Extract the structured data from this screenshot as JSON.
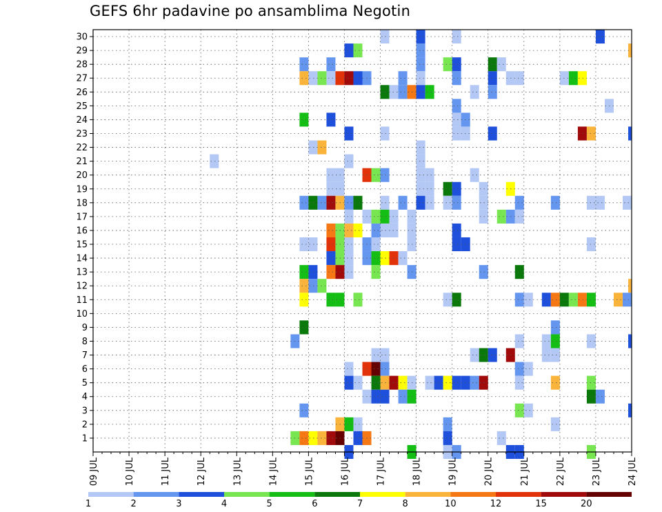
{
  "chart_data": {
    "type": "heatmap",
    "title": "GEFS 6hr padavine po ansamblima Negotin",
    "x_tick_labels": [
      "09 JUL",
      "10 JUL",
      "11 JUL",
      "12 JUL",
      "13 JUL",
      "14 JUL",
      "15 JUL",
      "16 JUL",
      "17 JUL",
      "18 JUL",
      "19 JUL",
      "20 JUL",
      "21 JUL",
      "22 JUL",
      "23 JUL",
      "24 JUL"
    ],
    "y_tick_labels": [
      "1",
      "2",
      "3",
      "4",
      "5",
      "6",
      "7",
      "8",
      "9",
      "10",
      "11",
      "12",
      "13",
      "14",
      "15",
      "16",
      "17",
      "18",
      "19",
      "20",
      "21",
      "22",
      "23",
      "24",
      "25",
      "26",
      "27",
      "28",
      "29",
      "30"
    ],
    "time_steps_per_day": 4,
    "legend": {
      "labels": [
        "1",
        "2",
        "3",
        "4",
        "5",
        "6",
        "7",
        "8",
        "10",
        "12",
        "15",
        "20"
      ],
      "colors": [
        "#b4c8f5",
        "#6496f0",
        "#1e50dc",
        "#78e650",
        "#14be14",
        "#0a780a",
        "#ffff00",
        "#fab43c",
        "#f57814",
        "#e1320a",
        "#a00a0a",
        "#640000"
      ]
    },
    "grid": true,
    "cells": [
      [
        30,
        18.0,
        2
      ],
      [
        30,
        17.0,
        0
      ],
      [
        30,
        19.0,
        0
      ],
      [
        30,
        23.0,
        2
      ],
      [
        29,
        16.0,
        2
      ],
      [
        29,
        16.25,
        3
      ],
      [
        29,
        18.0,
        1
      ],
      [
        29,
        24.0,
        7
      ],
      [
        28,
        14.75,
        1
      ],
      [
        28,
        15.5,
        1
      ],
      [
        28,
        18.0,
        1
      ],
      [
        28,
        18.75,
        3
      ],
      [
        28,
        19.0,
        2
      ],
      [
        28,
        20.0,
        5
      ],
      [
        28,
        20.25,
        0
      ],
      [
        27,
        14.75,
        7
      ],
      [
        27,
        15.0,
        0
      ],
      [
        27,
        15.25,
        3
      ],
      [
        27,
        15.5,
        0
      ],
      [
        27,
        15.75,
        9
      ],
      [
        27,
        16.0,
        10
      ],
      [
        27,
        16.25,
        2
      ],
      [
        27,
        16.5,
        1
      ],
      [
        27,
        17.5,
        1
      ],
      [
        27,
        18.0,
        0
      ],
      [
        27,
        19.0,
        1
      ],
      [
        27,
        20.0,
        2
      ],
      [
        27,
        20.5,
        0
      ],
      [
        27,
        20.75,
        0
      ],
      [
        27,
        22.0,
        0
      ],
      [
        27,
        22.25,
        4
      ],
      [
        27,
        22.5,
        6
      ],
      [
        26,
        17.0,
        5
      ],
      [
        26,
        17.25,
        0
      ],
      [
        26,
        17.5,
        1
      ],
      [
        26,
        17.75,
        8
      ],
      [
        26,
        18.0,
        2
      ],
      [
        26,
        18.25,
        4
      ],
      [
        26,
        19.5,
        0
      ],
      [
        26,
        20.0,
        1
      ],
      [
        25,
        19.0,
        1
      ],
      [
        25,
        23.25,
        0
      ],
      [
        24,
        14.75,
        4
      ],
      [
        24,
        15.5,
        2
      ],
      [
        24,
        19.0,
        0
      ],
      [
        24,
        19.25,
        1
      ],
      [
        23,
        16.0,
        2
      ],
      [
        23,
        17.0,
        0
      ],
      [
        23,
        19.0,
        0
      ],
      [
        23,
        19.25,
        0
      ],
      [
        23,
        20.0,
        2
      ],
      [
        23,
        22.5,
        10
      ],
      [
        23,
        22.75,
        7
      ],
      [
        23,
        24.0,
        2
      ],
      [
        22,
        15.0,
        0
      ],
      [
        22,
        15.25,
        7
      ],
      [
        22,
        18.0,
        0
      ],
      [
        21,
        12.25,
        0
      ],
      [
        21,
        16.0,
        0
      ],
      [
        21,
        18.0,
        0
      ],
      [
        20,
        15.5,
        0
      ],
      [
        20,
        15.75,
        0
      ],
      [
        20,
        16.5,
        9
      ],
      [
        20,
        16.75,
        3
      ],
      [
        20,
        17.0,
        1
      ],
      [
        20,
        18.0,
        0
      ],
      [
        20,
        18.25,
        0
      ],
      [
        20,
        19.5,
        0
      ],
      [
        19,
        15.5,
        0
      ],
      [
        19,
        15.75,
        0
      ],
      [
        19,
        18.0,
        0
      ],
      [
        19,
        18.25,
        0
      ],
      [
        19,
        18.75,
        5
      ],
      [
        19,
        19.0,
        2
      ],
      [
        19,
        19.75,
        0
      ],
      [
        19,
        20.5,
        6
      ],
      [
        18,
        14.75,
        1
      ],
      [
        18,
        15.0,
        5
      ],
      [
        18,
        15.25,
        1
      ],
      [
        18,
        15.5,
        10
      ],
      [
        18,
        15.75,
        7
      ],
      [
        18,
        16.0,
        1
      ],
      [
        18,
        16.25,
        5
      ],
      [
        18,
        17.0,
        0
      ],
      [
        18,
        17.5,
        1
      ],
      [
        18,
        18.0,
        2
      ],
      [
        18,
        18.25,
        0
      ],
      [
        18,
        18.75,
        0
      ],
      [
        18,
        19.0,
        1
      ],
      [
        18,
        19.75,
        0
      ],
      [
        18,
        20.75,
        1
      ],
      [
        18,
        21.75,
        1
      ],
      [
        18,
        22.75,
        0
      ],
      [
        18,
        23.0,
        0
      ],
      [
        18,
        23.75,
        0
      ],
      [
        17,
        16.0,
        0
      ],
      [
        17,
        16.5,
        0
      ],
      [
        17,
        16.75,
        3
      ],
      [
        17,
        17.0,
        4
      ],
      [
        17,
        17.25,
        0
      ],
      [
        17,
        17.75,
        0
      ],
      [
        17,
        19.75,
        0
      ],
      [
        17,
        20.25,
        3
      ],
      [
        17,
        20.5,
        1
      ],
      [
        17,
        20.75,
        0
      ],
      [
        16,
        15.5,
        8
      ],
      [
        16,
        15.75,
        3
      ],
      [
        16,
        16.0,
        7
      ],
      [
        16,
        16.25,
        6
      ],
      [
        16,
        16.75,
        1
      ],
      [
        16,
        17.0,
        0
      ],
      [
        16,
        17.25,
        0
      ],
      [
        16,
        17.75,
        0
      ],
      [
        16,
        19.0,
        2
      ],
      [
        15,
        14.75,
        0
      ],
      [
        15,
        15.0,
        0
      ],
      [
        15,
        15.5,
        9
      ],
      [
        15,
        15.75,
        3
      ],
      [
        15,
        16.0,
        0
      ],
      [
        15,
        16.5,
        1
      ],
      [
        15,
        16.75,
        0
      ],
      [
        15,
        17.75,
        0
      ],
      [
        15,
        19.0,
        2
      ],
      [
        15,
        19.25,
        2
      ],
      [
        15,
        22.75,
        0
      ],
      [
        14,
        15.5,
        2
      ],
      [
        14,
        15.75,
        3
      ],
      [
        14,
        16.0,
        0
      ],
      [
        14,
        16.5,
        1
      ],
      [
        14,
        16.75,
        4
      ],
      [
        14,
        17.0,
        6
      ],
      [
        14,
        17.25,
        9
      ],
      [
        14,
        17.5,
        0
      ],
      [
        13,
        14.75,
        4
      ],
      [
        14,
        16.0,
        0
      ],
      [
        13,
        15.0,
        2
      ],
      [
        13,
        15.5,
        8
      ],
      [
        13,
        15.75,
        10
      ],
      [
        13,
        16.0,
        0
      ],
      [
        13,
        16.75,
        3
      ],
      [
        13,
        17.75,
        1
      ],
      [
        13,
        19.75,
        1
      ],
      [
        13,
        20.75,
        5
      ],
      [
        12,
        14.75,
        7
      ],
      [
        12,
        15.0,
        1
      ],
      [
        12,
        15.25,
        3
      ],
      [
        12,
        24.0,
        7
      ],
      [
        11,
        14.75,
        6
      ],
      [
        11,
        15.5,
        4
      ],
      [
        11,
        15.75,
        4
      ],
      [
        11,
        16.25,
        3
      ],
      [
        11,
        18.75,
        0
      ],
      [
        11,
        19.0,
        5
      ],
      [
        11,
        20.75,
        1
      ],
      [
        11,
        21.0,
        0
      ],
      [
        11,
        21.5,
        2
      ],
      [
        11,
        21.75,
        8
      ],
      [
        11,
        22.0,
        5
      ],
      [
        11,
        22.25,
        3
      ],
      [
        11,
        22.5,
        8
      ],
      [
        11,
        22.75,
        4
      ],
      [
        11,
        23.5,
        7
      ],
      [
        11,
        23.75,
        1
      ],
      [
        10,
        0,
        -1
      ],
      [
        9,
        14.75,
        5
      ],
      [
        9,
        21.75,
        1
      ],
      [
        8,
        14.5,
        1
      ],
      [
        8,
        20.75,
        0
      ],
      [
        8,
        21.5,
        0
      ],
      [
        8,
        21.75,
        4
      ],
      [
        8,
        22.75,
        0
      ],
      [
        8,
        24.0,
        2
      ],
      [
        7,
        16.75,
        0
      ],
      [
        7,
        17.0,
        0
      ],
      [
        7,
        19.5,
        0
      ],
      [
        7,
        19.75,
        5
      ],
      [
        7,
        20.0,
        2
      ],
      [
        7,
        20.5,
        10
      ],
      [
        7,
        21.5,
        0
      ],
      [
        7,
        21.75,
        0
      ],
      [
        6,
        16.0,
        0
      ],
      [
        6,
        16.5,
        9
      ],
      [
        6,
        16.75,
        11
      ],
      [
        6,
        17.0,
        1
      ],
      [
        6,
        20.75,
        1
      ],
      [
        6,
        21.0,
        0
      ],
      [
        5,
        16.0,
        2
      ],
      [
        5,
        16.25,
        0
      ],
      [
        5,
        16.75,
        5
      ],
      [
        5,
        17.0,
        7
      ],
      [
        5,
        17.25,
        10
      ],
      [
        5,
        17.5,
        6
      ],
      [
        5,
        17.75,
        0
      ],
      [
        5,
        18.25,
        0
      ],
      [
        5,
        18.5,
        2
      ],
      [
        5,
        18.75,
        6
      ],
      [
        5,
        19.0,
        2
      ],
      [
        5,
        19.25,
        2
      ],
      [
        5,
        19.5,
        1
      ],
      [
        5,
        19.75,
        10
      ],
      [
        5,
        20.75,
        0
      ],
      [
        5,
        21.75,
        7
      ],
      [
        5,
        22.75,
        3
      ],
      [
        4,
        16.5,
        0
      ],
      [
        4,
        16.75,
        2
      ],
      [
        4,
        17.0,
        2
      ],
      [
        4,
        17.5,
        1
      ],
      [
        4,
        17.75,
        4
      ],
      [
        4,
        22.75,
        5
      ],
      [
        4,
        23.0,
        1
      ],
      [
        3,
        14.75,
        1
      ],
      [
        3,
        20.75,
        3
      ],
      [
        3,
        21.0,
        0
      ],
      [
        3,
        24.0,
        2
      ],
      [
        2,
        15.75,
        7
      ],
      [
        2,
        16.0,
        4
      ],
      [
        2,
        16.25,
        0
      ],
      [
        2,
        18.75,
        1
      ],
      [
        2,
        21.75,
        0
      ],
      [
        1,
        14.5,
        3
      ],
      [
        1,
        14.75,
        8
      ],
      [
        1,
        15.0,
        6
      ],
      [
        1,
        15.25,
        7
      ],
      [
        1,
        15.5,
        10
      ],
      [
        1,
        15.75,
        11
      ],
      [
        1,
        16.25,
        2
      ],
      [
        1,
        16.5,
        8
      ],
      [
        1,
        18.75,
        2
      ],
      [
        1,
        20.25,
        0
      ],
      [
        0,
        16.0,
        2
      ],
      [
        0,
        17.75,
        4
      ],
      [
        0,
        18.75,
        0
      ],
      [
        0,
        19.0,
        1
      ],
      [
        0,
        20.5,
        2
      ],
      [
        0,
        20.75,
        2
      ],
      [
        0,
        22.75,
        3
      ]
    ]
  }
}
